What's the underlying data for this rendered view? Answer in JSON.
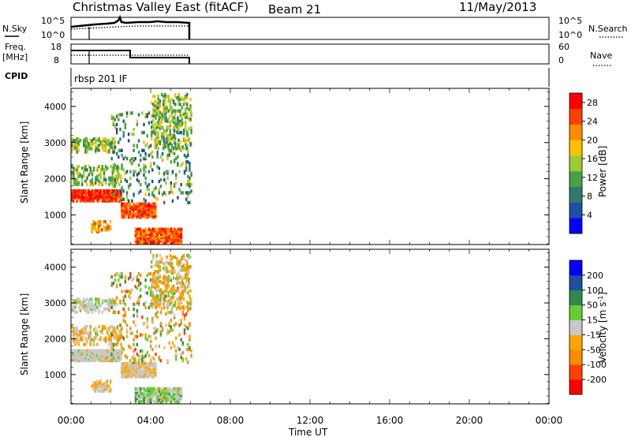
{
  "header": {
    "station": "Christmas Valley East (fitACF)",
    "beam": "Beam 21",
    "date": "11/May/2013"
  },
  "sky_panel": {
    "label": "N.Sky",
    "left_ticks": [
      "10^5",
      "10^0"
    ],
    "right_ticks": [
      "10^5",
      "10^0"
    ],
    "right_label": "N.Search"
  },
  "freq_panel": {
    "label_line1": "Freq.",
    "label_line2": "[MHz]",
    "left_ticks": [
      "18",
      "8"
    ],
    "right_ticks": [
      "60",
      "0"
    ],
    "right_label": "Nave"
  },
  "cpid_panel": {
    "label": "CPID",
    "value": "rbsp 201 IF"
  },
  "time_axis": {
    "label": "Time UT",
    "ticks": [
      "00:00",
      "04:00",
      "08:00",
      "12:00",
      "16:00",
      "20:00",
      "00:00"
    ]
  },
  "colors": {
    "power_scale": [
      "#0000ff",
      "#1f4fa0",
      "#2f7a6a",
      "#46a046",
      "#9acd32",
      "#ffc000",
      "#ff8c00",
      "#ff4000",
      "#ff0000"
    ],
    "velocity_scale": [
      "#ff0000",
      "#ff4000",
      "#ff8c00",
      "#ffa500",
      "#c8c8c8",
      "#66cc33",
      "#2f8a4a",
      "#1f4fa0",
      "#0000ff"
    ]
  },
  "chart_data": [
    {
      "type": "heatmap",
      "title": "",
      "xlabel": "Time UT",
      "ylabel": "Slant Range [km]",
      "xlim": [
        "00:00",
        "24:00"
      ],
      "ylim": [
        180,
        4500
      ],
      "yticks": [
        "1000",
        "2000",
        "3000",
        "4000"
      ],
      "colorbar_label": "Power [dB]",
      "colorbar_ticks": [
        "4",
        "8",
        "12",
        "16",
        "20",
        "24",
        "28"
      ],
      "colorbar_range": [
        0,
        30
      ],
      "data_extent_hours": [
        0,
        6
      ]
    },
    {
      "type": "heatmap",
      "title": "",
      "xlabel": "Time UT",
      "ylabel": "Slant Range [km]",
      "xlim": [
        "00:00",
        "24:00"
      ],
      "ylim": [
        180,
        4500
      ],
      "yticks": [
        "1000",
        "2000",
        "3000",
        "4000"
      ],
      "colorbar_label": "Velocity [m s^-1]",
      "colorbar_ticks": [
        "200",
        "100",
        "50",
        "15",
        "-15",
        "-50",
        "-100",
        "-200"
      ],
      "colorbar_range": [
        -250,
        250
      ],
      "data_extent_hours": [
        0,
        6
      ]
    }
  ]
}
